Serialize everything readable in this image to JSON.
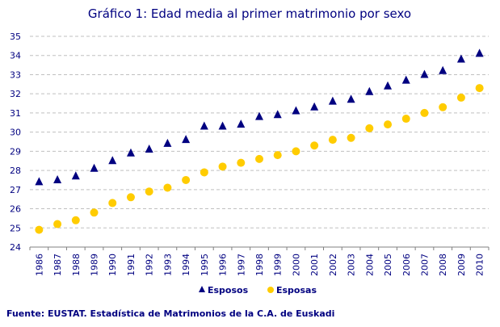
{
  "chart_data": {
    "type": "scatter",
    "title": "Gráfico 1: Edad media al primer matrimonio por sexo",
    "xlabel": "",
    "ylabel": "",
    "categories": [
      "1986",
      "1987",
      "1988",
      "1989",
      "1990",
      "1991",
      "1992",
      "1993",
      "1994",
      "1995",
      "1996",
      "1997",
      "1998",
      "1999",
      "2000",
      "2001",
      "2002",
      "2003",
      "2004",
      "2005",
      "2006",
      "2007",
      "2008",
      "2009",
      "2010"
    ],
    "ylim": [
      24,
      35
    ],
    "yticks": [
      "24",
      "25",
      "26",
      "27",
      "28",
      "29",
      "30",
      "31",
      "32",
      "33",
      "34",
      "35"
    ],
    "grid": "horizontal dashed",
    "legend_position": "bottom",
    "series": [
      {
        "name": "Esposos",
        "marker": "triangle",
        "color": "#000080",
        "values": [
          27.4,
          27.5,
          27.7,
          28.1,
          28.5,
          28.9,
          29.1,
          29.4,
          29.6,
          30.3,
          30.3,
          30.4,
          30.8,
          30.9,
          31.1,
          31.3,
          31.6,
          31.7,
          32.1,
          32.4,
          32.7,
          33.0,
          33.2,
          33.8,
          34.1
        ]
      },
      {
        "name": "Esposas",
        "marker": "circle",
        "color": "#FFCC00",
        "values": [
          24.9,
          25.2,
          25.4,
          25.8,
          26.3,
          26.6,
          26.9,
          27.1,
          27.5,
          27.9,
          28.2,
          28.4,
          28.6,
          28.8,
          29.0,
          29.3,
          29.6,
          29.7,
          30.2,
          30.4,
          30.7,
          31.0,
          31.3,
          31.8,
          32.3
        ]
      }
    ]
  },
  "source": "Fuente: EUSTAT. Estadística de Matrimonios de la C.A. de Euskadi"
}
